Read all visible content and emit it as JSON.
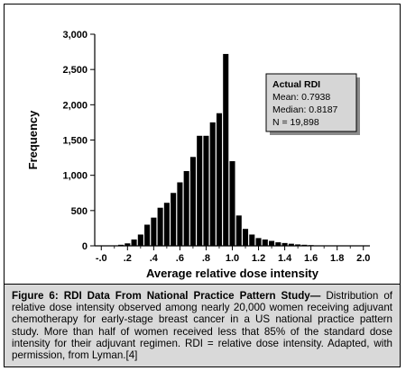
{
  "chart_data": {
    "type": "bar",
    "xlabel": "Average relative dose intensity",
    "ylabel": "Frequency",
    "xlim": [
      -0.05,
      2.05
    ],
    "ylim": [
      0,
      3000
    ],
    "x_ticks": [
      "-.0",
      ".2",
      ".4",
      ".6",
      ".8",
      "1.0",
      "1.2",
      "1.4",
      "1.6",
      "1.8",
      "2.0"
    ],
    "y_ticks": [
      "0",
      "500",
      "1,000",
      "1,500",
      "2,000",
      "2,500",
      "3,000"
    ],
    "bar_width": 0.05,
    "bar_color": "#000000",
    "x": [
      0.15,
      0.2,
      0.25,
      0.3,
      0.35,
      0.4,
      0.45,
      0.5,
      0.55,
      0.6,
      0.65,
      0.7,
      0.75,
      0.8,
      0.85,
      0.9,
      0.95,
      1.0,
      1.05,
      1.1,
      1.15,
      1.2,
      1.25,
      1.3,
      1.35,
      1.4,
      1.45,
      1.5,
      1.55,
      1.6
    ],
    "values": [
      15,
      35,
      90,
      160,
      300,
      400,
      540,
      610,
      750,
      900,
      1060,
      1260,
      1560,
      1560,
      1750,
      1880,
      2720,
      1200,
      430,
      240,
      160,
      110,
      90,
      70,
      50,
      40,
      30,
      20,
      15,
      10
    ],
    "stats_box": {
      "title": "Actual RDI",
      "lines": [
        "Mean: 0.7938",
        "Median: 0.8187",
        "N = 19,898"
      ]
    }
  },
  "caption": {
    "bold": "Figure 6: RDI Data From National Practice Pattern Study—",
    "text": " Distribution of relative dose intensity observed among nearly 20,000 women receiving adjuvant chemotherapy for early-stage breast cancer in a US national practice pattern study. More than half of women received less that 85% of the standard dose intensity for their adjuvant regimen. RDI = relative dose intensity. Adapted, with permission, from Lyman.[4]"
  }
}
